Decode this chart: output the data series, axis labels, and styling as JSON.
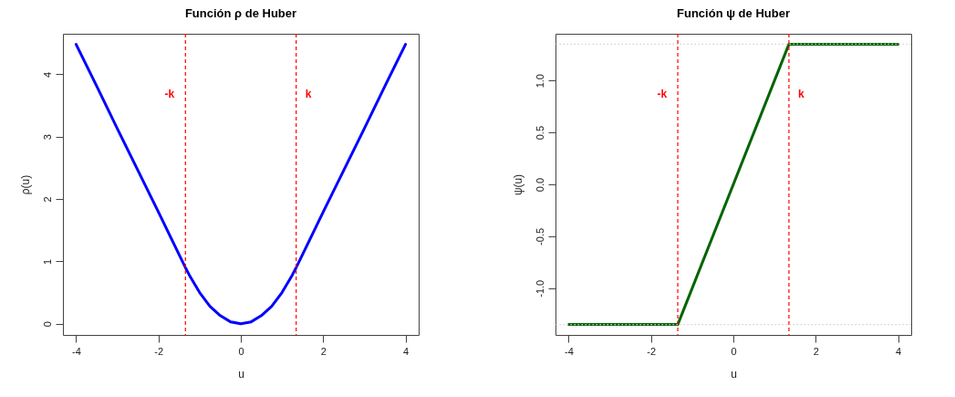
{
  "chart_data": [
    {
      "type": "line",
      "title": "Función ρ de Huber",
      "xlabel": "u",
      "ylabel": "ρ(u)",
      "x": [
        -4,
        -3.5,
        -3,
        -2.5,
        -2,
        -1.5,
        -1.345,
        -1.25,
        -1,
        -0.75,
        -0.5,
        -0.25,
        0,
        0.25,
        0.5,
        0.75,
        1,
        1.25,
        1.345,
        1.5,
        2,
        2.5,
        3,
        3.5,
        4
      ],
      "series": [
        {
          "color": "#0000ff",
          "values": [
            4.48,
            3.81,
            3.13,
            2.46,
            1.79,
            1.11,
            0.9,
            0.78,
            0.5,
            0.28,
            0.13,
            0.03,
            0,
            0.03,
            0.13,
            0.28,
            0.5,
            0.78,
            0.9,
            1.11,
            1.79,
            2.46,
            3.13,
            3.81,
            4.48
          ]
        }
      ],
      "xlim": [
        -4.32,
        4.32
      ],
      "ylim": [
        -0.18,
        4.65
      ],
      "xticks": [
        -4,
        -2,
        0,
        2,
        4
      ],
      "yticks": [
        0,
        1,
        2,
        3,
        4
      ],
      "grid": false,
      "legend": false,
      "line_style": "solid",
      "marker": "none",
      "ref_lines": [
        {
          "axis": "x",
          "value": -1.345,
          "label": "-k",
          "color": "#ff0000",
          "line_style": "dashed"
        },
        {
          "axis": "x",
          "value": 1.345,
          "label": "k",
          "color": "#ff0000",
          "line_style": "dashed"
        }
      ]
    },
    {
      "type": "line",
      "title": "Función ψ de Huber",
      "xlabel": "u",
      "ylabel": "ψ(u)",
      "x": [
        -4,
        -1.35,
        1.35,
        4
      ],
      "series": [
        {
          "color": "#006400",
          "values": [
            -1.35,
            -1.35,
            1.35,
            1.35
          ]
        }
      ],
      "xlim": [
        -4.32,
        4.32
      ],
      "ylim": [
        -1.45,
        1.45
      ],
      "xticks": [
        -4,
        -2,
        0,
        2,
        4
      ],
      "yticks": [
        {
          "value": -1,
          "label": "-1.0"
        },
        -0.5,
        {
          "value": 0,
          "label": "0.0"
        },
        0.5,
        {
          "value": 1,
          "label": "1.0"
        }
      ],
      "grid": false,
      "legend": false,
      "line_style": "solid",
      "marker": "none",
      "ref_lines": [
        {
          "axis": "x",
          "value": -1.35,
          "label": "-k",
          "color": "#ff0000",
          "line_style": "dashed"
        },
        {
          "axis": "x",
          "value": 1.35,
          "label": "k",
          "color": "#ff0000",
          "line_style": "dashed"
        },
        {
          "axis": "y",
          "value": -1.35,
          "color": "#d3d3d3",
          "line_style": "dotted"
        },
        {
          "axis": "y",
          "value": 1.35,
          "color": "#d3d3d3",
          "line_style": "dotted"
        }
      ]
    }
  ]
}
